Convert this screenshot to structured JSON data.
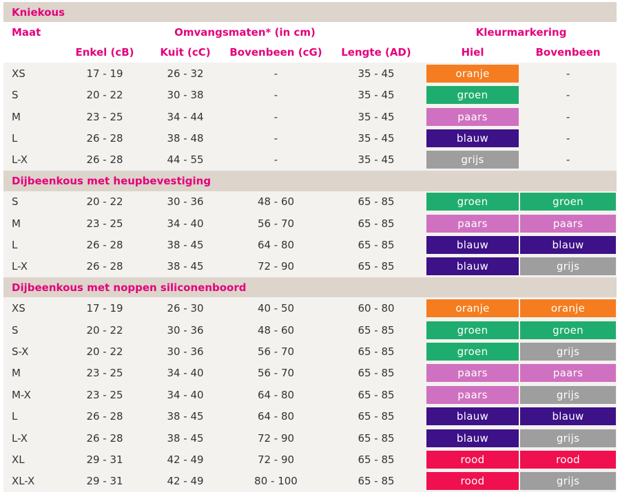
{
  "colors": {
    "oranje": "#f57c1f",
    "groen": "#1fad6f",
    "paars": "#d070c0",
    "blauw": "#3d1188",
    "grijs": "#9e9e9e",
    "rood": "#f0104f",
    "accent": "#e4007c"
  },
  "header": {
    "maat": "Maat",
    "omvangsmaten": "Omvangsmaten* (in cm)",
    "kleurmarkering": "Kleurmarkering",
    "enkel": "Enkel (cB)",
    "kuit": "Kuit  (cC)",
    "bovenbeen": "Bovenbeen (cG)",
    "lengte": "Lengte  (AD)",
    "hiel": "Hiel",
    "bovenbeen_kleur": "Bovenbeen"
  },
  "sections": [
    {
      "title": "Kniekous",
      "rows": [
        {
          "maat": "XS",
          "enkel": "17 - 19",
          "kuit": "26 - 32",
          "bovenbeen": "-",
          "lengte": "35 - 45",
          "hiel": "oranje",
          "bovenbeen_kleur": "-"
        },
        {
          "maat": "S",
          "enkel": "20 - 22",
          "kuit": "30 - 38",
          "bovenbeen": "-",
          "lengte": "35 - 45",
          "hiel": "groen",
          "bovenbeen_kleur": "-"
        },
        {
          "maat": "M",
          "enkel": "23 - 25",
          "kuit": "34 - 44",
          "bovenbeen": "-",
          "lengte": "35 - 45",
          "hiel": "paars",
          "bovenbeen_kleur": "-"
        },
        {
          "maat": "L",
          "enkel": "26 - 28",
          "kuit": "38 - 48",
          "bovenbeen": "-",
          "lengte": "35 - 45",
          "hiel": "blauw",
          "bovenbeen_kleur": "-"
        },
        {
          "maat": "L-X",
          "enkel": "26 - 28",
          "kuit": "44 - 55",
          "bovenbeen": "-",
          "lengte": "35 - 45",
          "hiel": "grijs",
          "bovenbeen_kleur": "-"
        }
      ]
    },
    {
      "title": "Dijbeenkous met heupbevestiging",
      "rows": [
        {
          "maat": "S",
          "enkel": "20 - 22",
          "kuit": "30 - 36",
          "bovenbeen": "48 - 60",
          "lengte": "65 - 85",
          "hiel": "groen",
          "bovenbeen_kleur": "groen"
        },
        {
          "maat": "M",
          "enkel": "23 - 25",
          "kuit": "34 - 40",
          "bovenbeen": "56 - 70",
          "lengte": "65 - 85",
          "hiel": "paars",
          "bovenbeen_kleur": "paars"
        },
        {
          "maat": "L",
          "enkel": "26 - 28",
          "kuit": "38 - 45",
          "bovenbeen": "64 - 80",
          "lengte": "65 - 85",
          "hiel": "blauw",
          "bovenbeen_kleur": "blauw"
        },
        {
          "maat": "L-X",
          "enkel": "26 - 28",
          "kuit": "38 - 45",
          "bovenbeen": "72 - 90",
          "lengte": "65 - 85",
          "hiel": "blauw",
          "bovenbeen_kleur": "grijs"
        }
      ]
    },
    {
      "title": "Dijbeenkous met noppen siliconenboord",
      "rows": [
        {
          "maat": "XS",
          "enkel": "17 - 19",
          "kuit": "26 - 30",
          "bovenbeen": "40 - 50",
          "lengte": "60 - 80",
          "hiel": "oranje",
          "bovenbeen_kleur": "oranje"
        },
        {
          "maat": "S",
          "enkel": "20 - 22",
          "kuit": "30 - 36",
          "bovenbeen": "48 - 60",
          "lengte": "65 - 85",
          "hiel": "groen",
          "bovenbeen_kleur": "groen"
        },
        {
          "maat": "S-X",
          "enkel": "20 - 22",
          "kuit": "30 - 36",
          "bovenbeen": "56 - 70",
          "lengte": "65 - 85",
          "hiel": "groen",
          "bovenbeen_kleur": "grijs"
        },
        {
          "maat": "M",
          "enkel": "23 - 25",
          "kuit": "34 - 40",
          "bovenbeen": "56 - 70",
          "lengte": "65 - 85",
          "hiel": "paars",
          "bovenbeen_kleur": "paars"
        },
        {
          "maat": "M-X",
          "enkel": "23 - 25",
          "kuit": "34 - 40",
          "bovenbeen": "64 - 80",
          "lengte": "65 - 85",
          "hiel": "paars",
          "bovenbeen_kleur": "grijs"
        },
        {
          "maat": "L",
          "enkel": "26 - 28",
          "kuit": "38 - 45",
          "bovenbeen": "64 - 80",
          "lengte": "65 - 85",
          "hiel": "blauw",
          "bovenbeen_kleur": "blauw"
        },
        {
          "maat": "L-X",
          "enkel": "26 - 28",
          "kuit": "38 - 45",
          "bovenbeen": "72 - 90",
          "lengte": "65 - 85",
          "hiel": "blauw",
          "bovenbeen_kleur": "grijs"
        },
        {
          "maat": "XL",
          "enkel": "29 - 31",
          "kuit": "42 - 49",
          "bovenbeen": "72 - 90",
          "lengte": "65 - 85",
          "hiel": "rood",
          "bovenbeen_kleur": "rood"
        },
        {
          "maat": "XL-X",
          "enkel": "29 - 31",
          "kuit": "42 - 49",
          "bovenbeen": "80 - 100",
          "lengte": "65 - 85",
          "hiel": "rood",
          "bovenbeen_kleur": "grijs"
        }
      ]
    }
  ]
}
